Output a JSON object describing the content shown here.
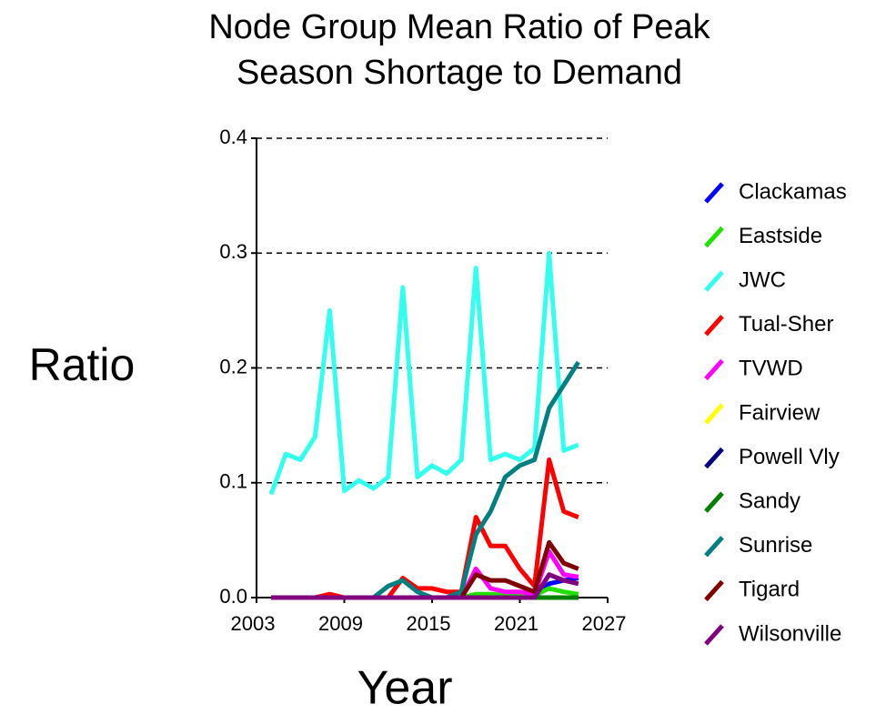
{
  "chart_data": {
    "type": "line",
    "title": [
      "Node Group Mean Ratio of Peak",
      "Season Shortage to Demand"
    ],
    "xlabel": "Year",
    "ylabel": "Ratio",
    "x": [
      2004,
      2005,
      2006,
      2007,
      2008,
      2009,
      2010,
      2011,
      2012,
      2013,
      2014,
      2015,
      2016,
      2017,
      2018,
      2019,
      2020,
      2021,
      2022,
      2023,
      2024,
      2025
    ],
    "xlim": [
      2003,
      2027
    ],
    "xticks": [
      2003,
      2009,
      2015,
      2021,
      2027
    ],
    "ylim": [
      0,
      0.4
    ],
    "yticks": [
      {
        "value": 0,
        "label": "0.0"
      },
      0.1,
      0.2,
      0.3,
      0.4
    ],
    "grid": true,
    "legend": "right",
    "series": [
      {
        "name": "Clackamas",
        "color": "#0000ff",
        "values": [
          0,
          0,
          0,
          0,
          0,
          0,
          0,
          0,
          0,
          0,
          0,
          0,
          0,
          0,
          0,
          0,
          0,
          0,
          0,
          0.012,
          0.015,
          0.017
        ]
      },
      {
        "name": "Eastside",
        "color": "#22e000",
        "values": [
          0,
          0,
          0,
          0,
          0,
          0,
          0,
          0,
          0,
          0,
          0,
          0,
          0,
          0,
          0.003,
          0.003,
          0.002,
          0.002,
          0.002,
          0.008,
          0.005,
          0.003
        ]
      },
      {
        "name": "JWC",
        "color": "#33ffee",
        "values": [
          0.09,
          0.125,
          0.12,
          0.14,
          0.25,
          0.093,
          0.102,
          0.095,
          0.105,
          0.27,
          0.105,
          0.115,
          0.108,
          0.12,
          0.287,
          0.12,
          0.125,
          0.12,
          0.13,
          0.3,
          0.128,
          0.133
        ]
      },
      {
        "name": "Tual-Sher",
        "color": "#ff0000",
        "values": [
          0,
          0,
          0,
          0,
          0.003,
          0,
          0,
          0,
          0,
          0.017,
          0.008,
          0.008,
          0.005,
          0.005,
          0.07,
          0.045,
          0.045,
          0.025,
          0.01,
          0.12,
          0.075,
          0.07
        ]
      },
      {
        "name": "TVWD",
        "color": "#ff00ff",
        "values": [
          0,
          0,
          0,
          0,
          0,
          0,
          0,
          0,
          0,
          0,
          0,
          0,
          0,
          0,
          0.025,
          0.008,
          0.005,
          0.005,
          0.003,
          0.04,
          0.02,
          0.018
        ]
      },
      {
        "name": "Fairview",
        "color": "#ffff00",
        "values": [
          0,
          0,
          0,
          0,
          0,
          0,
          0,
          0,
          0,
          0,
          0,
          0,
          0,
          0,
          0,
          0,
          0,
          0,
          0,
          0,
          0,
          0
        ]
      },
      {
        "name": "Powell Vly",
        "color": "#000080",
        "values": [
          0,
          0,
          0,
          0,
          0,
          0,
          0,
          0,
          0,
          0,
          0,
          0,
          0,
          0,
          0,
          0,
          0,
          0,
          0,
          0,
          0,
          0
        ]
      },
      {
        "name": "Sandy",
        "color": "#008000",
        "values": [
          0,
          0,
          0,
          0,
          0,
          0,
          0,
          0,
          0,
          0,
          0,
          0,
          0,
          0,
          0,
          0,
          0,
          0,
          0,
          0,
          0,
          0
        ]
      },
      {
        "name": "Sunrise",
        "color": "#008080",
        "values": [
          0,
          0,
          0,
          0,
          0,
          0,
          0,
          0,
          0.01,
          0.015,
          0.005,
          0,
          0,
          0.005,
          0.055,
          0.075,
          0.105,
          0.115,
          0.12,
          0.165,
          0.185,
          0.205
        ]
      },
      {
        "name": "Tigard",
        "color": "#800000",
        "values": [
          0,
          0,
          0,
          0,
          0,
          0,
          0,
          0,
          0,
          0,
          0,
          0,
          0,
          0,
          0.02,
          0.015,
          0.015,
          0.01,
          0.005,
          0.048,
          0.03,
          0.025
        ]
      },
      {
        "name": "Wilsonville",
        "color": "#800080",
        "values": [
          0,
          0,
          0,
          0,
          0,
          0,
          0,
          0,
          0,
          0,
          0,
          0,
          0,
          0,
          0,
          0,
          0,
          0,
          0,
          0.02,
          0.015,
          0.012
        ]
      }
    ]
  }
}
